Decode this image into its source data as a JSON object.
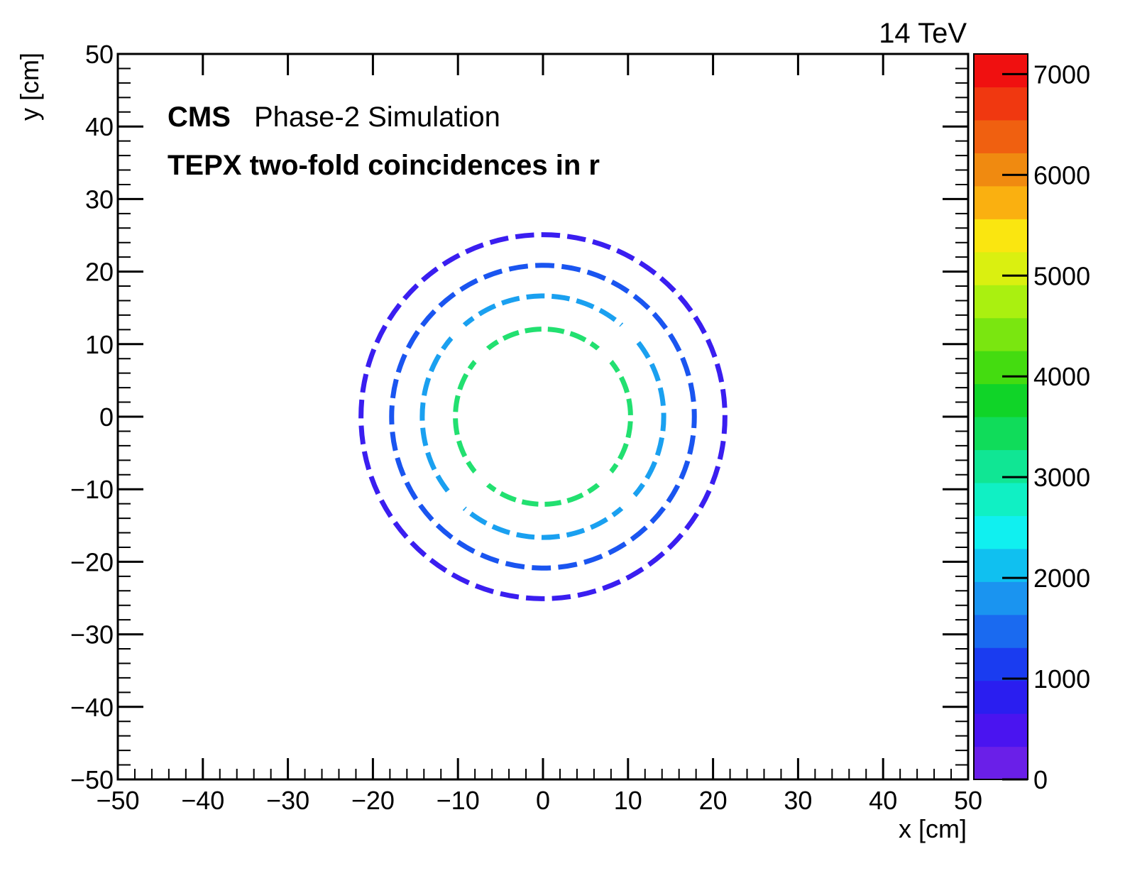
{
  "chart_data": {
    "type": "heatmap",
    "energy_label": "14 TeV",
    "experiment": "CMS",
    "status": "Phase-2 Simulation",
    "subtitle": "TEPX two-fold coincidences in r",
    "xlabel": "x [cm]",
    "ylabel": "y [cm]",
    "xlim": [
      -50,
      50
    ],
    "ylim": [
      -50,
      50
    ],
    "x_ticks": [
      -50,
      -40,
      -30,
      -20,
      -10,
      0,
      10,
      20,
      30,
      40,
      50
    ],
    "y_ticks": [
      -50,
      -40,
      -30,
      -20,
      -10,
      0,
      10,
      20,
      30,
      40,
      50
    ],
    "x_tick_labels": [
      "−50",
      "−40",
      "−30",
      "−20",
      "−10",
      "0",
      "10",
      "20",
      "30",
      "40",
      "50"
    ],
    "y_tick_labels": [
      "−50",
      "−40",
      "−30",
      "−20",
      "−10",
      "0",
      "10",
      "20",
      "30",
      "40",
      "50"
    ],
    "colorbar": {
      "zlim": [
        0,
        7200
      ],
      "ticks": [
        0,
        1000,
        2000,
        3000,
        4000,
        5000,
        6000,
        7000
      ],
      "tick_labels": [
        "0",
        "1000",
        "2000",
        "3000",
        "4000",
        "5000",
        "6000",
        "7000"
      ],
      "colors": [
        "#6a1fe8",
        "#4a14f0",
        "#2a1ef0",
        "#1a3cf0",
        "#1a6af0",
        "#1a94f0",
        "#10c0f0",
        "#10f0f0",
        "#10f0c4",
        "#10e694",
        "#10dc5a",
        "#10d428",
        "#44dc10",
        "#7ae610",
        "#aaf010",
        "#daf010",
        "#fae610",
        "#fab010",
        "#f08a10",
        "#f06010",
        "#f03810",
        "#f01010"
      ]
    },
    "rings": [
      {
        "radius": 10.3,
        "value": 3600,
        "color": "#22e070"
      },
      {
        "radius": 14.2,
        "value": 2000,
        "color": "#1aa0f0"
      },
      {
        "radius": 17.8,
        "value": 1100,
        "color": "#1a55f0"
      },
      {
        "radius": 21.4,
        "value": 700,
        "color": "#3a1ef0"
      }
    ]
  }
}
